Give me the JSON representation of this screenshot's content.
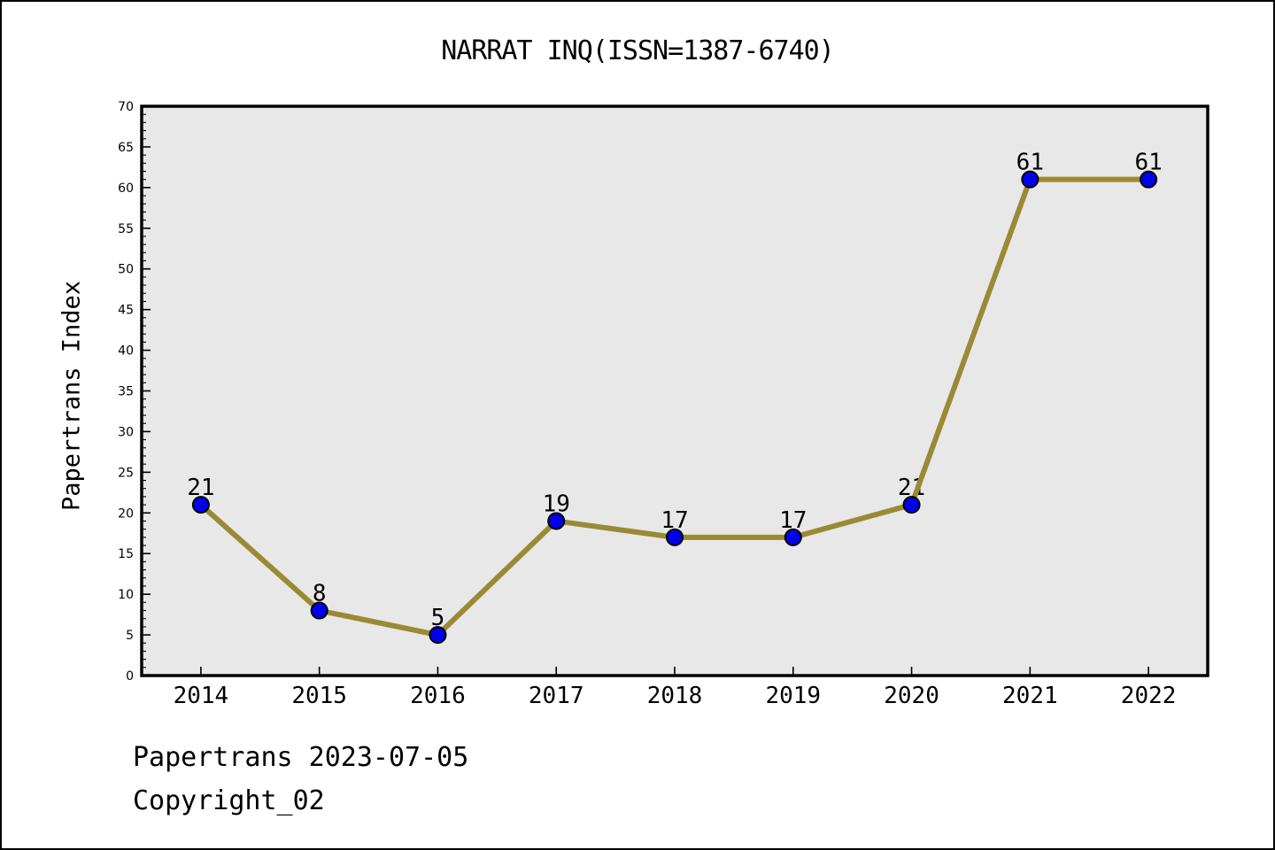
{
  "title": "NARRAT INQ(ISSN=1387-6740)",
  "footer": {
    "line1": "Papertrans 2023-07-05",
    "line2": "Copyright_02"
  },
  "chart_data": {
    "type": "line",
    "title": "NARRAT INQ(ISSN=1387-6740)",
    "xlabel": "",
    "ylabel": "Papertrans Index",
    "x": [
      2014,
      2015,
      2016,
      2017,
      2018,
      2019,
      2020,
      2021,
      2022
    ],
    "values": [
      21,
      8,
      5,
      19,
      17,
      17,
      21,
      61,
      61
    ],
    "point_labels": [
      "21",
      "8",
      "5",
      "19",
      "17",
      "17",
      "21",
      "61",
      "61"
    ],
    "xlim": [
      2013.5,
      2022.5
    ],
    "ylim": [
      0,
      70
    ],
    "ytick_major_step": 5,
    "ytick_minor_step": 1,
    "grid": false,
    "legend": null,
    "colors": {
      "line": "#9a8a35",
      "marker_fill": "#0000ee",
      "marker_edge": "#000000",
      "plot_bg": "#e8e8e8",
      "frame": "#000000",
      "page_bg": "#ffffff",
      "text": "#000000"
    }
  }
}
